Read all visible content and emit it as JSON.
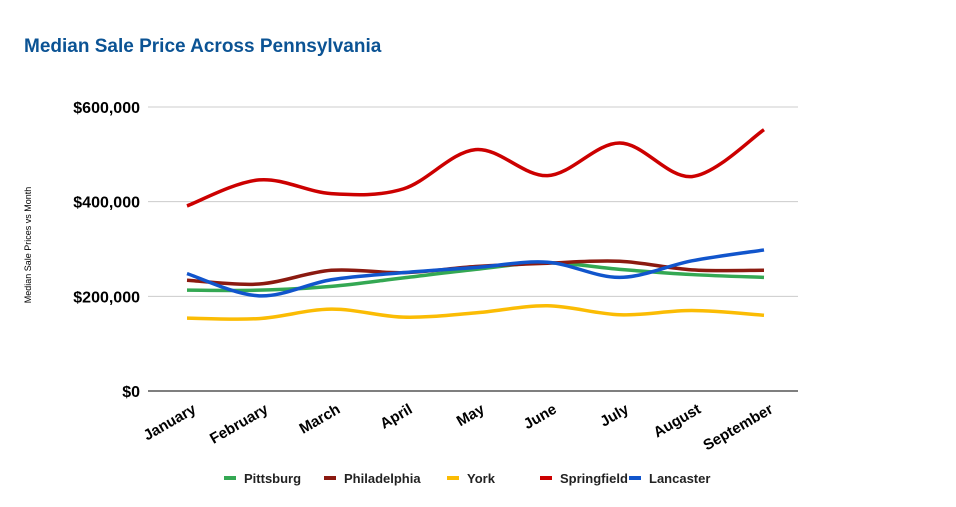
{
  "chart_data": {
    "type": "line",
    "smooth": true,
    "title": "Median Sale Price Across Pennsylvania",
    "xlabel": "",
    "ylabel": "Median Sale Prices vs Month",
    "categories": [
      "January",
      "February",
      "March",
      "April",
      "May",
      "June",
      "July",
      "August",
      "September"
    ],
    "ylim": [
      0,
      600000
    ],
    "yticks": [
      0,
      200000,
      400000,
      600000
    ],
    "ytick_labels": [
      "$0",
      "$200,000",
      "$400,000",
      "$600,000"
    ],
    "grid": true,
    "legend_position": "bottom",
    "series": [
      {
        "name": "Pittsburg",
        "color": "#34a853",
        "values": [
          213000,
          213000,
          221000,
          239000,
          257000,
          271000,
          257000,
          246000,
          240000
        ]
      },
      {
        "name": "Philadelphia",
        "color": "#8b1a10",
        "values": [
          234000,
          226000,
          255000,
          250000,
          263000,
          270000,
          274000,
          256000,
          255000
        ]
      },
      {
        "name": "York",
        "color": "#fbbc04",
        "values": [
          154000,
          153000,
          173000,
          156000,
          165000,
          180000,
          161000,
          170000,
          160000
        ]
      },
      {
        "name": "Springfield",
        "color": "#cc0000",
        "values": [
          391000,
          446000,
          417000,
          427000,
          510000,
          455000,
          524000,
          453000,
          552000
        ]
      },
      {
        "name": "Lancaster",
        "color": "#1155cc",
        "values": [
          248000,
          201000,
          235000,
          250000,
          261000,
          272000,
          240000,
          275000,
          298000
        ]
      }
    ]
  }
}
